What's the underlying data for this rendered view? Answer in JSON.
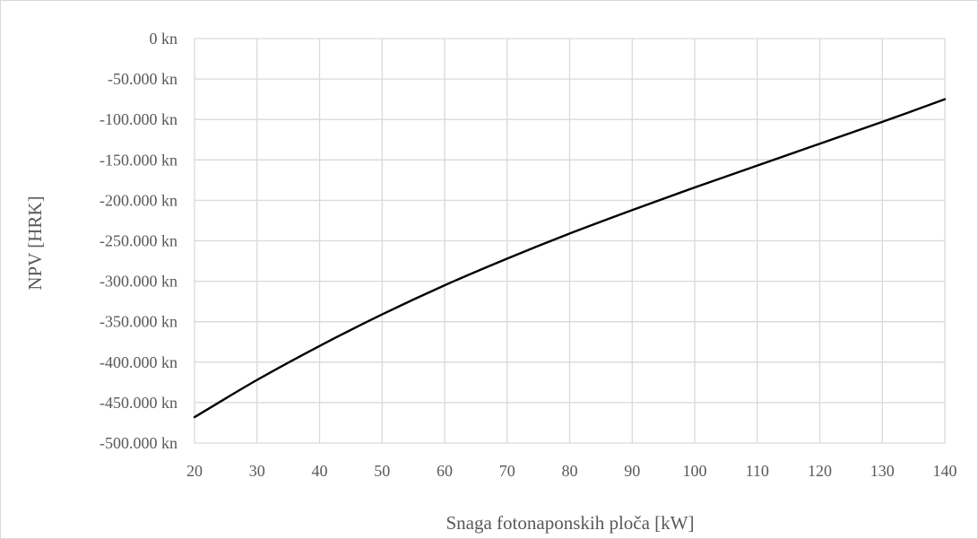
{
  "chart_data": {
    "type": "line",
    "title": "",
    "xlabel": "Snaga fotonaponskih ploča [kW]",
    "ylabel": "NPV [HRK]",
    "xlim": [
      20,
      140
    ],
    "ylim": [
      -500000,
      0
    ],
    "x_ticks": [
      20,
      30,
      40,
      50,
      60,
      70,
      80,
      90,
      100,
      110,
      120,
      130,
      140
    ],
    "x_tick_labels": [
      "20",
      "30",
      "40",
      "50",
      "60",
      "70",
      "80",
      "90",
      "100",
      "110",
      "120",
      "130",
      "140"
    ],
    "y_ticks": [
      0,
      -50000,
      -100000,
      -150000,
      -200000,
      -250000,
      -300000,
      -350000,
      -400000,
      -450000,
      -500000
    ],
    "y_tick_labels": [
      "0 kn",
      "-50.000 kn",
      "-100.000 kn",
      "-150.000 kn",
      "-200.000 kn",
      "-250.000 kn",
      "-300.000 kn",
      "-350.000 kn",
      "-400.000 kn",
      "-450.000 kn",
      "-500.000 kn"
    ],
    "grid": true,
    "legend": "none",
    "series": [
      {
        "color": "#000000",
        "x": [
          20,
          30,
          40,
          50,
          60,
          70,
          80,
          90,
          100,
          110,
          120,
          130,
          140
        ],
        "y": [
          -468000,
          -422000,
          -380000,
          -341000,
          -305000,
          -272000,
          -241000,
          -212000,
          -184000,
          -157000,
          -130000,
          -103000,
          -75000
        ]
      }
    ]
  }
}
